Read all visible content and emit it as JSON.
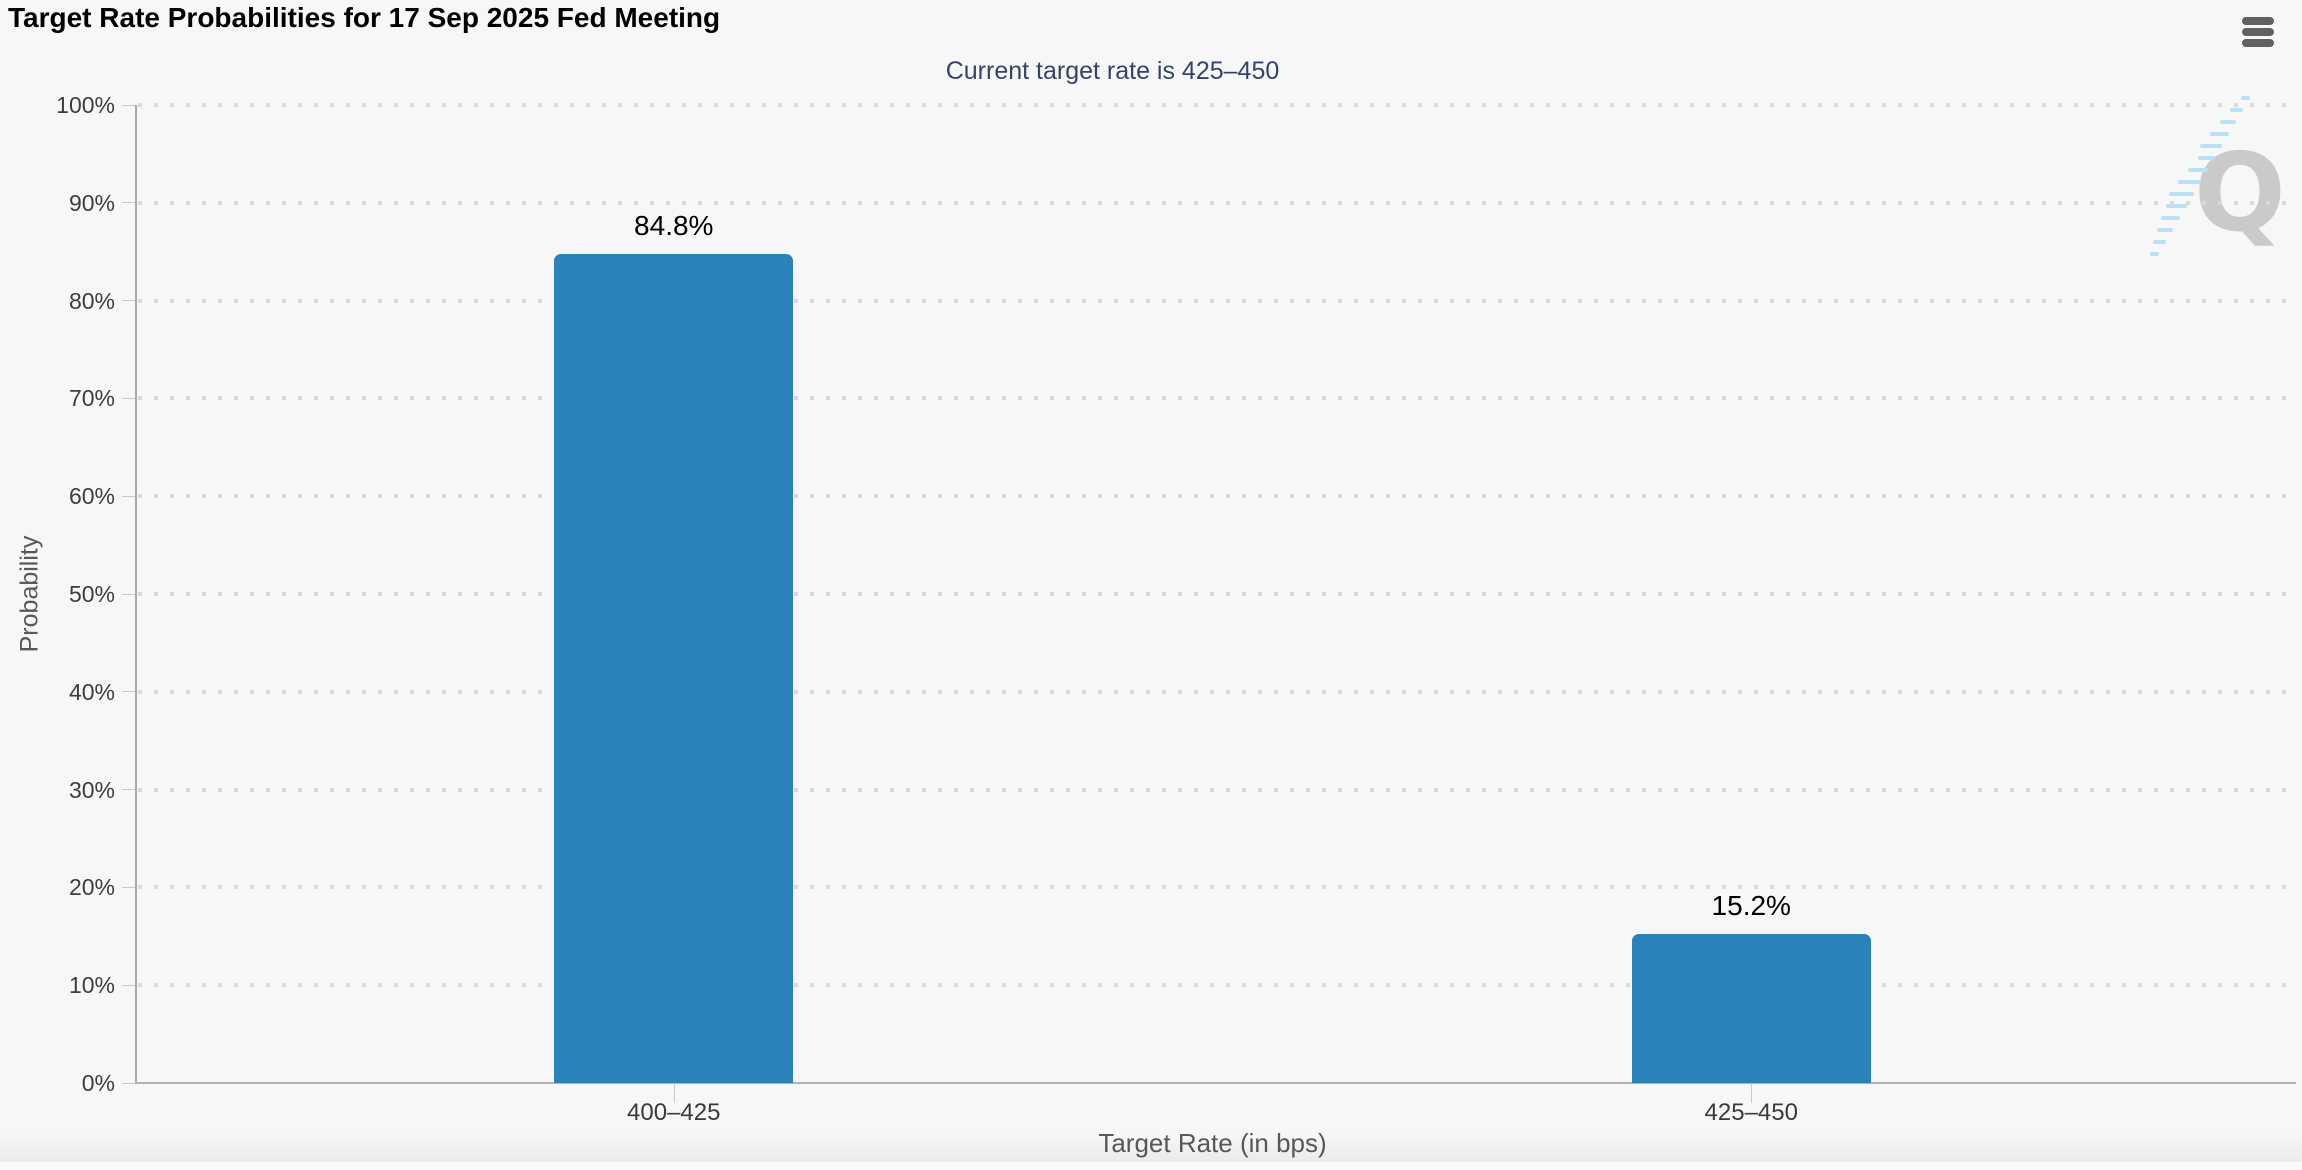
{
  "chart_data": {
    "type": "bar",
    "title": "Target Rate Probabilities for 17 Sep 2025 Fed Meeting",
    "subtitle": "Current target rate is 425–450",
    "categories": [
      "400–425",
      "425–450"
    ],
    "series": [
      {
        "name": "Probability",
        "values": [
          84.8,
          15.2
        ]
      }
    ],
    "value_labels": [
      "84.8%",
      "15.2%"
    ],
    "xlabel": "Target Rate (in bps)",
    "ylabel": "Probability",
    "ylim": [
      0,
      100
    ],
    "yticks": [
      0,
      10,
      20,
      30,
      40,
      50,
      60,
      70,
      80,
      90,
      100
    ],
    "ytick_format": "{value}%",
    "grid": "dotted-horizontal",
    "legend": "none",
    "bar_color": "#2a82ba"
  },
  "menu": {
    "icon": "hamburger-icon"
  },
  "watermark": {
    "letter": "Q"
  },
  "colors": {
    "background": "#f7f7f7",
    "bar": "#2a82ba",
    "subtitle": "#33436b",
    "grid_dot": "#d9d9d9",
    "watermark_blue": "#b7e2f4",
    "watermark_gray": "#cacaca"
  }
}
